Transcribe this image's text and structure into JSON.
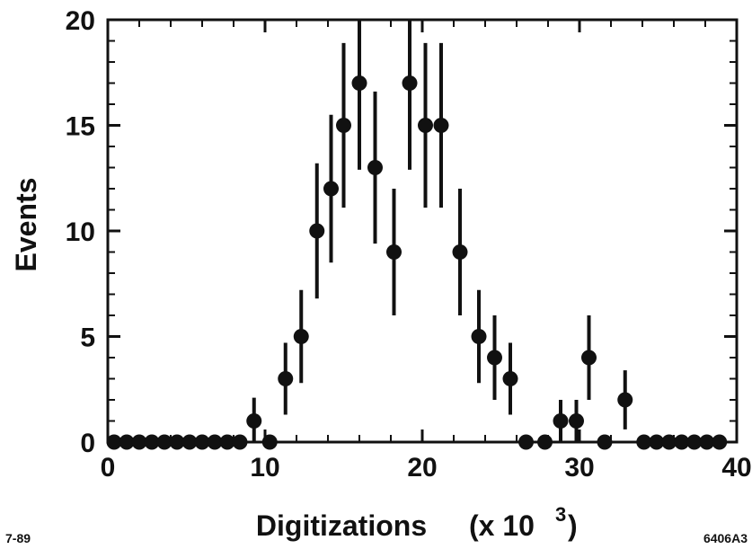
{
  "chart_data": {
    "type": "scatter",
    "xlabel": "Digitizations",
    "xlabel_unit": "(x 10",
    "xlabel_exponent": "3",
    "ylabel": "Events",
    "xlim": [
      0,
      40
    ],
    "ylim": [
      0,
      20
    ],
    "xticks": [
      0,
      10,
      20,
      30,
      40
    ],
    "yticks": [
      0,
      5,
      10,
      15,
      20
    ],
    "grid": false,
    "series": [
      {
        "x": [
          0.4,
          1.2,
          2.0,
          2.8,
          3.6,
          4.4,
          5.2,
          6.0,
          6.8,
          7.6,
          8.4,
          9.3,
          10.3,
          11.3,
          12.3,
          13.3,
          14.2,
          15.0,
          16.0,
          17.0,
          18.2,
          19.2,
          20.2,
          21.2,
          22.4,
          23.6,
          24.6,
          25.6,
          26.6,
          27.8,
          28.8,
          29.8,
          30.6,
          31.6,
          32.9,
          34.1,
          34.9,
          35.7,
          36.5,
          37.3,
          38.1,
          38.9
        ],
        "y": [
          0,
          0,
          0,
          0,
          0,
          0,
          0,
          0,
          0,
          0,
          0,
          1,
          0,
          3,
          5,
          10,
          12,
          15,
          17,
          13,
          9,
          17,
          15,
          15,
          9,
          5,
          4,
          3,
          0,
          0,
          1,
          1,
          4,
          0,
          2,
          0,
          0,
          0,
          0,
          0,
          0,
          0
        ],
        "err": [
          0,
          0,
          0,
          0,
          0,
          0,
          0,
          0,
          0,
          0,
          0,
          1.1,
          0,
          1.7,
          2.2,
          3.2,
          3.5,
          3.9,
          4.1,
          3.6,
          3.0,
          4.1,
          3.9,
          3.9,
          3.0,
          2.2,
          2.0,
          1.7,
          0,
          0,
          1.0,
          1.0,
          2.0,
          0,
          1.4,
          0,
          0,
          0,
          0,
          0,
          0,
          0
        ]
      }
    ]
  },
  "corner_left": "7-89",
  "corner_right": "6406A3",
  "colors": {
    "ink": "#111111",
    "background": "#ffffff"
  }
}
